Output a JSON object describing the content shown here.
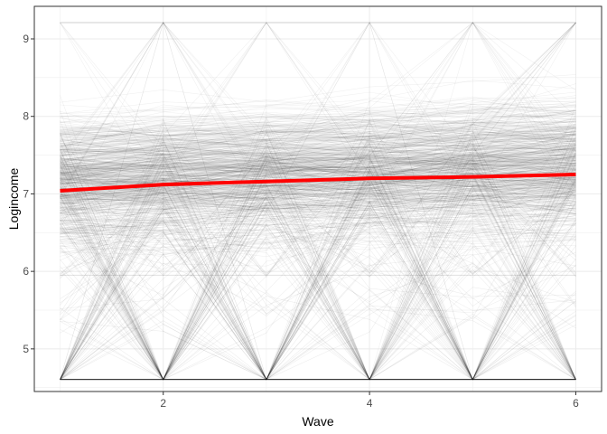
{
  "chart_data": {
    "type": "line",
    "xlabel": "Wave",
    "ylabel": "Logincome",
    "x_ticks": [
      2,
      4,
      6
    ],
    "y_ticks": [
      5,
      6,
      7,
      8,
      9
    ],
    "xlim": [
      0.75,
      6.25
    ],
    "ylim": [
      4.45,
      9.42
    ],
    "grid": true,
    "series": [
      {
        "role": "individual-trajectories",
        "color": "#000000",
        "x": [
          1,
          2,
          3,
          4,
          5,
          6
        ],
        "typical_range": [
          6.0,
          8.3
        ],
        "center": 7.2,
        "floor": 4.605,
        "ceiling": 9.21,
        "secondary_band": 5.95
      },
      {
        "role": "mean-trend",
        "color": "#ff0000",
        "x": [
          1,
          2,
          3,
          4,
          5,
          6
        ],
        "values": [
          7.04,
          7.12,
          7.16,
          7.2,
          7.22,
          7.25
        ]
      }
    ]
  }
}
